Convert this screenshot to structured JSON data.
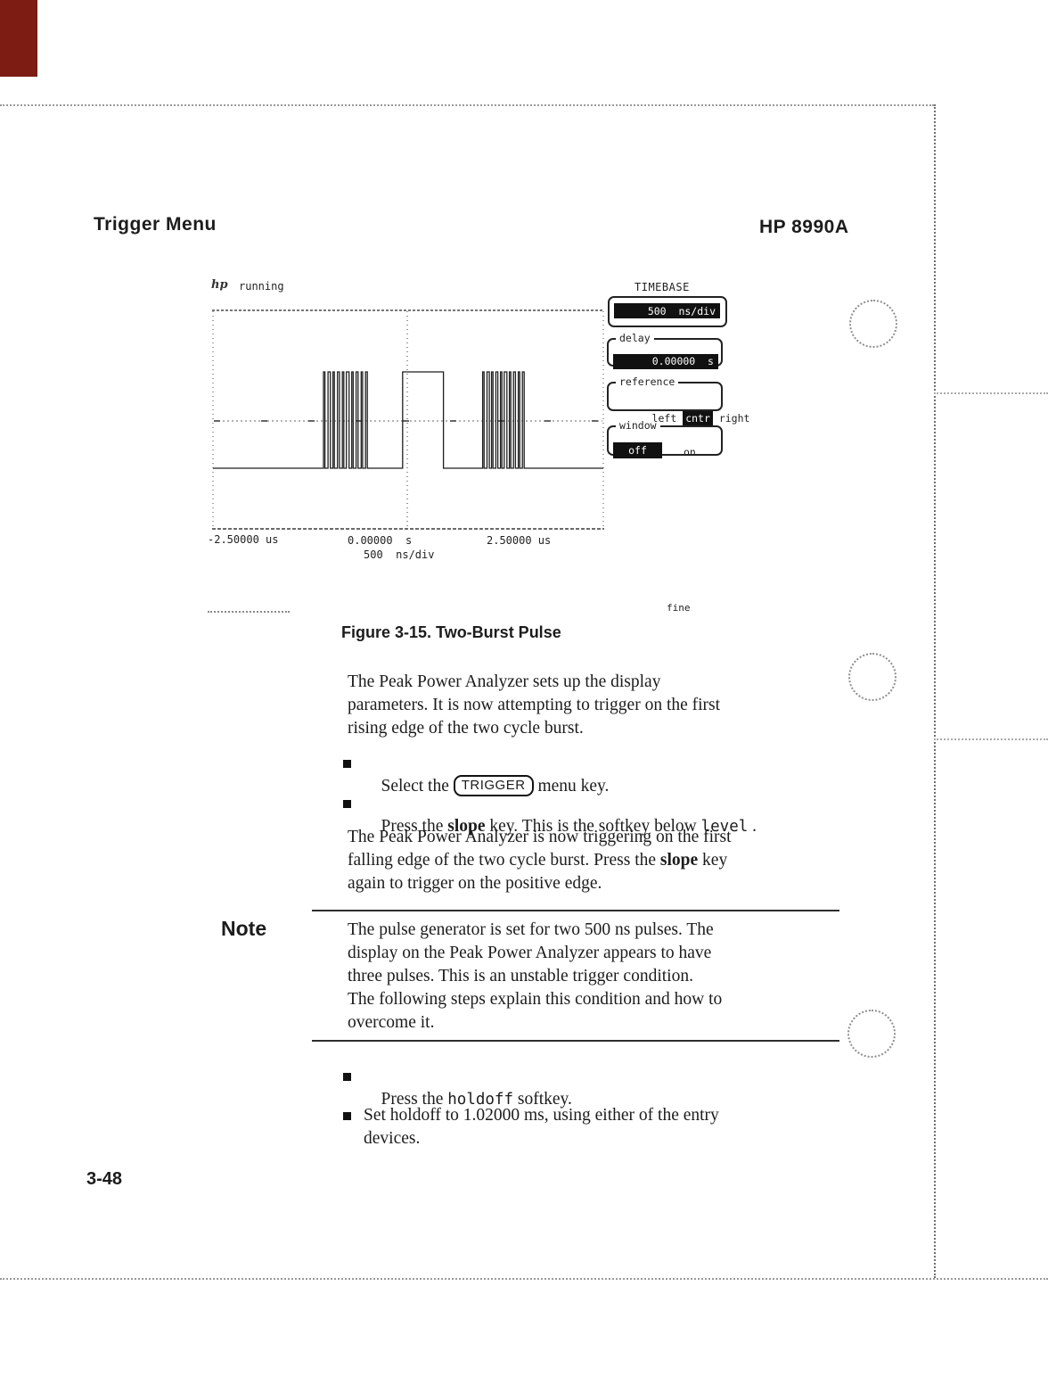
{
  "page": {
    "header": {
      "left": "Trigger Menu",
      "right": "HP 8990A"
    },
    "footer": {
      "page_number": "3-48"
    }
  },
  "figure": {
    "status_logo": "hp",
    "status_text": "running",
    "fine_label": "fine",
    "caption": "Figure 3-15. Two-Burst Pulse",
    "axis": {
      "left": "-2.50000 us",
      "center": "0.00000  s",
      "per_div": "500  ns/div",
      "right": "2.50000 us"
    },
    "panel": {
      "title": "TIMEBASE",
      "timebase_value": "500  ns/div",
      "delay_label": "delay",
      "delay_value": "0.00000  s",
      "reference_label": "reference",
      "reference_left": "left",
      "reference_center": "cntr",
      "reference_right": "right",
      "reference_selected": "cntr",
      "window_label": "window",
      "window_off": "off",
      "window_on": "on",
      "window_selected": "off"
    }
  },
  "content": {
    "para1": {
      "lines": [
        "The Peak Power Analyzer sets up the display",
        "parameters. It is now attempting to trigger on the first",
        "rising edge of the two cycle burst."
      ]
    },
    "bullet1": {
      "pre": "Select the ",
      "key": "TRIGGER",
      "post": " menu key."
    },
    "bullet2": {
      "pre": "Press the ",
      "bold": "slope",
      "mid": " key. This is the softkey below ",
      "mono": "level",
      "end": " ."
    },
    "para2": {
      "line1": "The Peak Power Analyzer is now triggering on the first",
      "line2_pre": "falling edge of the two cycle burst. Press the ",
      "line2_bold": "slope",
      "line2_end": " key",
      "line3": "again to trigger on the positive edge."
    },
    "note": {
      "label": "Note",
      "lines": [
        "The pulse generator is set for two 500 ns pulses. The",
        "display on the Peak Power Analyzer appears to have",
        "three pulses. This is an unstable trigger condition.",
        "The following steps explain this condition and how to",
        "overcome it."
      ]
    },
    "bullet3": {
      "pre": "Press the ",
      "mono": "holdoff",
      "end": " softkey."
    },
    "bullet4": {
      "lines": [
        "Set holdoff to 1.02000 ms, using either of the entry",
        "devices."
      ]
    }
  },
  "chart_data": {
    "type": "line",
    "title": "Two-Burst Pulse oscilloscope trace",
    "x_unit": "us",
    "x_range": [
      -2.5,
      2.5
    ],
    "timebase": "500 ns/div",
    "x_ticks": [
      "-2.50000 us",
      "0.00000 s",
      "2.50000 us"
    ],
    "levels": {
      "low": 0,
      "high": 1
    },
    "trigger_level_frac": 0.49,
    "bursts": [
      {
        "start_us": -1.08,
        "end_us": -0.52,
        "spikes": 10
      },
      {
        "start_us": 0.95,
        "end_us": 1.48,
        "spikes": 10
      }
    ],
    "wide_pulse": {
      "start_us": -0.07,
      "end_us": 0.45
    }
  },
  "colors": {
    "red_tab": "#7d1c12",
    "trace": "#1f1f1f",
    "invert_bg": "#111111"
  }
}
